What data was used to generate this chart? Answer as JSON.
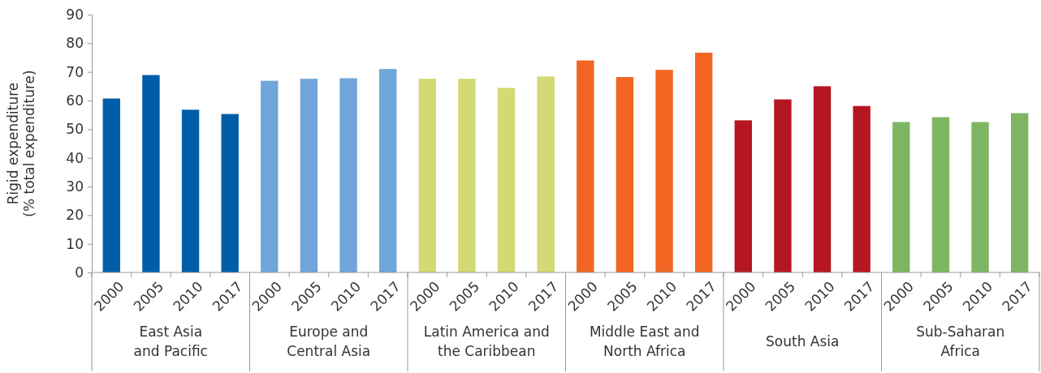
{
  "chart_data": {
    "type": "bar",
    "ylabel": "Rigid expenditure\n(% total expenditure)",
    "categories": [
      "2000",
      "2005",
      "2010",
      "2017",
      "2000",
      "2005",
      "2010",
      "2017",
      "2000",
      "2005",
      "2010",
      "2017",
      "2000",
      "2005",
      "2010",
      "2017",
      "2000",
      "2005",
      "2010",
      "2017",
      "2000",
      "2005",
      "2010",
      "2017"
    ],
    "values": [
      60.7,
      68.9,
      56.8,
      55.3,
      66.9,
      67.6,
      67.8,
      71.0,
      67.6,
      67.6,
      64.4,
      68.4,
      74.0,
      68.2,
      70.7,
      76.7,
      53.1,
      60.4,
      65.0,
      58.1,
      52.5,
      54.2,
      52.5,
      55.6
    ],
    "colors": [
      "#005ea8",
      "#005ea8",
      "#005ea8",
      "#005ea8",
      "#6fa5d8",
      "#6fa5d8",
      "#6fa5d8",
      "#6fa5d8",
      "#d3d973",
      "#d3d973",
      "#d3d973",
      "#d3d973",
      "#f26522",
      "#f26522",
      "#f26522",
      "#f26522",
      "#b51720",
      "#b51720",
      "#b51720",
      "#b51720",
      "#7db663",
      "#7db663",
      "#7db663",
      "#7db663"
    ],
    "annotations": [
      "East Asia\nand Pacific",
      "Europe and\nCentral Asia",
      "Latin America and\nthe Caribbean",
      "Middle East and\nNorth Africa",
      "South Asia",
      "Sub-Saharan\nAfrica"
    ],
    "ylim": [
      0,
      90
    ],
    "yticks": [
      0,
      10,
      20,
      30,
      40,
      50,
      60,
      70,
      80,
      90
    ],
    "grid": false
  }
}
